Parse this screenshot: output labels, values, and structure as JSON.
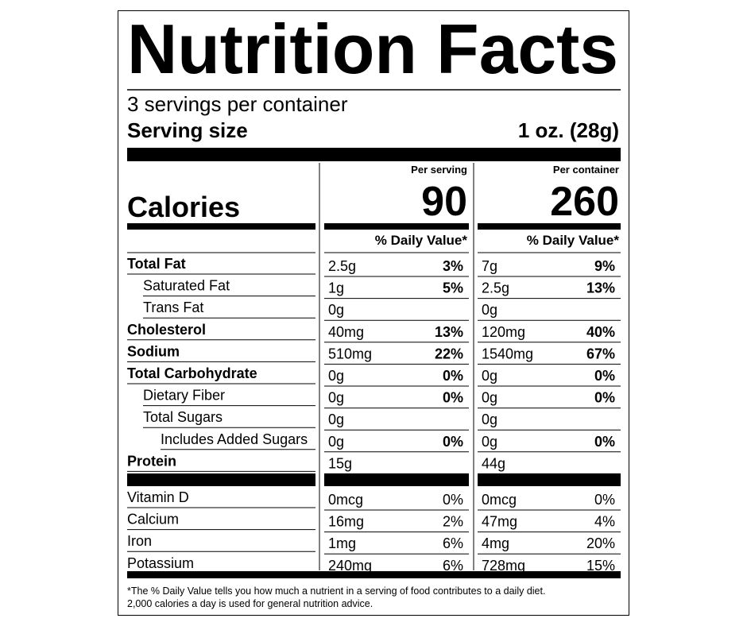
{
  "header": {
    "title": "Nutrition Facts",
    "servings": "3 servings per container",
    "serving_size_label": "Serving size",
    "serving_size": "1 oz. (28g)"
  },
  "calories_label": "Calories",
  "columns": [
    {
      "heading": "Per serving",
      "calories": "90",
      "dv_heading": "% Daily Value*"
    },
    {
      "heading": "Per container",
      "calories": "260",
      "dv_heading": "% Daily Value*"
    }
  ],
  "nutrients": [
    {
      "name": "Total Fat",
      "values": [
        {
          "amount": "2.5g",
          "dv": "3%"
        },
        {
          "amount": "7g",
          "dv": "9%"
        }
      ]
    },
    {
      "name": "Saturated Fat",
      "values": [
        {
          "amount": "1g",
          "dv": "5%"
        },
        {
          "amount": "2.5g",
          "dv": "13%"
        }
      ]
    },
    {
      "name": "Trans Fat",
      "values": [
        {
          "amount": "0g",
          "dv": null
        },
        {
          "amount": "0g",
          "dv": null
        }
      ]
    },
    {
      "name": "Cholesterol",
      "values": [
        {
          "amount": "40mg",
          "dv": "13%"
        },
        {
          "amount": "120mg",
          "dv": "40%"
        }
      ]
    },
    {
      "name": "Sodium",
      "values": [
        {
          "amount": "510mg",
          "dv": "22%"
        },
        {
          "amount": "1540mg",
          "dv": "67%"
        }
      ]
    },
    {
      "name": "Total Carbohydrate",
      "values": [
        {
          "amount": "0g",
          "dv": "0%"
        },
        {
          "amount": "0g",
          "dv": "0%"
        }
      ]
    },
    {
      "name": "Dietary Fiber",
      "values": [
        {
          "amount": "0g",
          "dv": "0%"
        },
        {
          "amount": "0g",
          "dv": "0%"
        }
      ]
    },
    {
      "name": "Total Sugars",
      "values": [
        {
          "amount": "0g",
          "dv": null
        },
        {
          "amount": "0g",
          "dv": null
        }
      ]
    },
    {
      "name": "Includes Added Sugars",
      "values": [
        {
          "amount": "0g",
          "dv": "0%"
        },
        {
          "amount": "0g",
          "dv": "0%"
        }
      ]
    },
    {
      "name": "Protein",
      "values": [
        {
          "amount": "15g",
          "dv": null
        },
        {
          "amount": "44g",
          "dv": null
        }
      ]
    }
  ],
  "micronutrients": [
    {
      "name": "Vitamin D",
      "values": [
        {
          "amount": "0mcg",
          "dv": "0%"
        },
        {
          "amount": "0mcg",
          "dv": "0%"
        }
      ]
    },
    {
      "name": "Calcium",
      "values": [
        {
          "amount": "16mg",
          "dv": "2%"
        },
        {
          "amount": "47mg",
          "dv": "4%"
        }
      ]
    },
    {
      "name": "Iron",
      "values": [
        {
          "amount": "1mg",
          "dv": "6%"
        },
        {
          "amount": "4mg",
          "dv": "20%"
        }
      ]
    },
    {
      "name": "Potassium",
      "values": [
        {
          "amount": "240mg",
          "dv": "6%"
        },
        {
          "amount": "728mg",
          "dv": "15%"
        }
      ]
    }
  ],
  "footnote": [
    "*The % Daily Value tells you how much a nutrient in a serving of food contributes to a daily diet.",
    "2,000 calories a day is used for general nutrition advice."
  ]
}
